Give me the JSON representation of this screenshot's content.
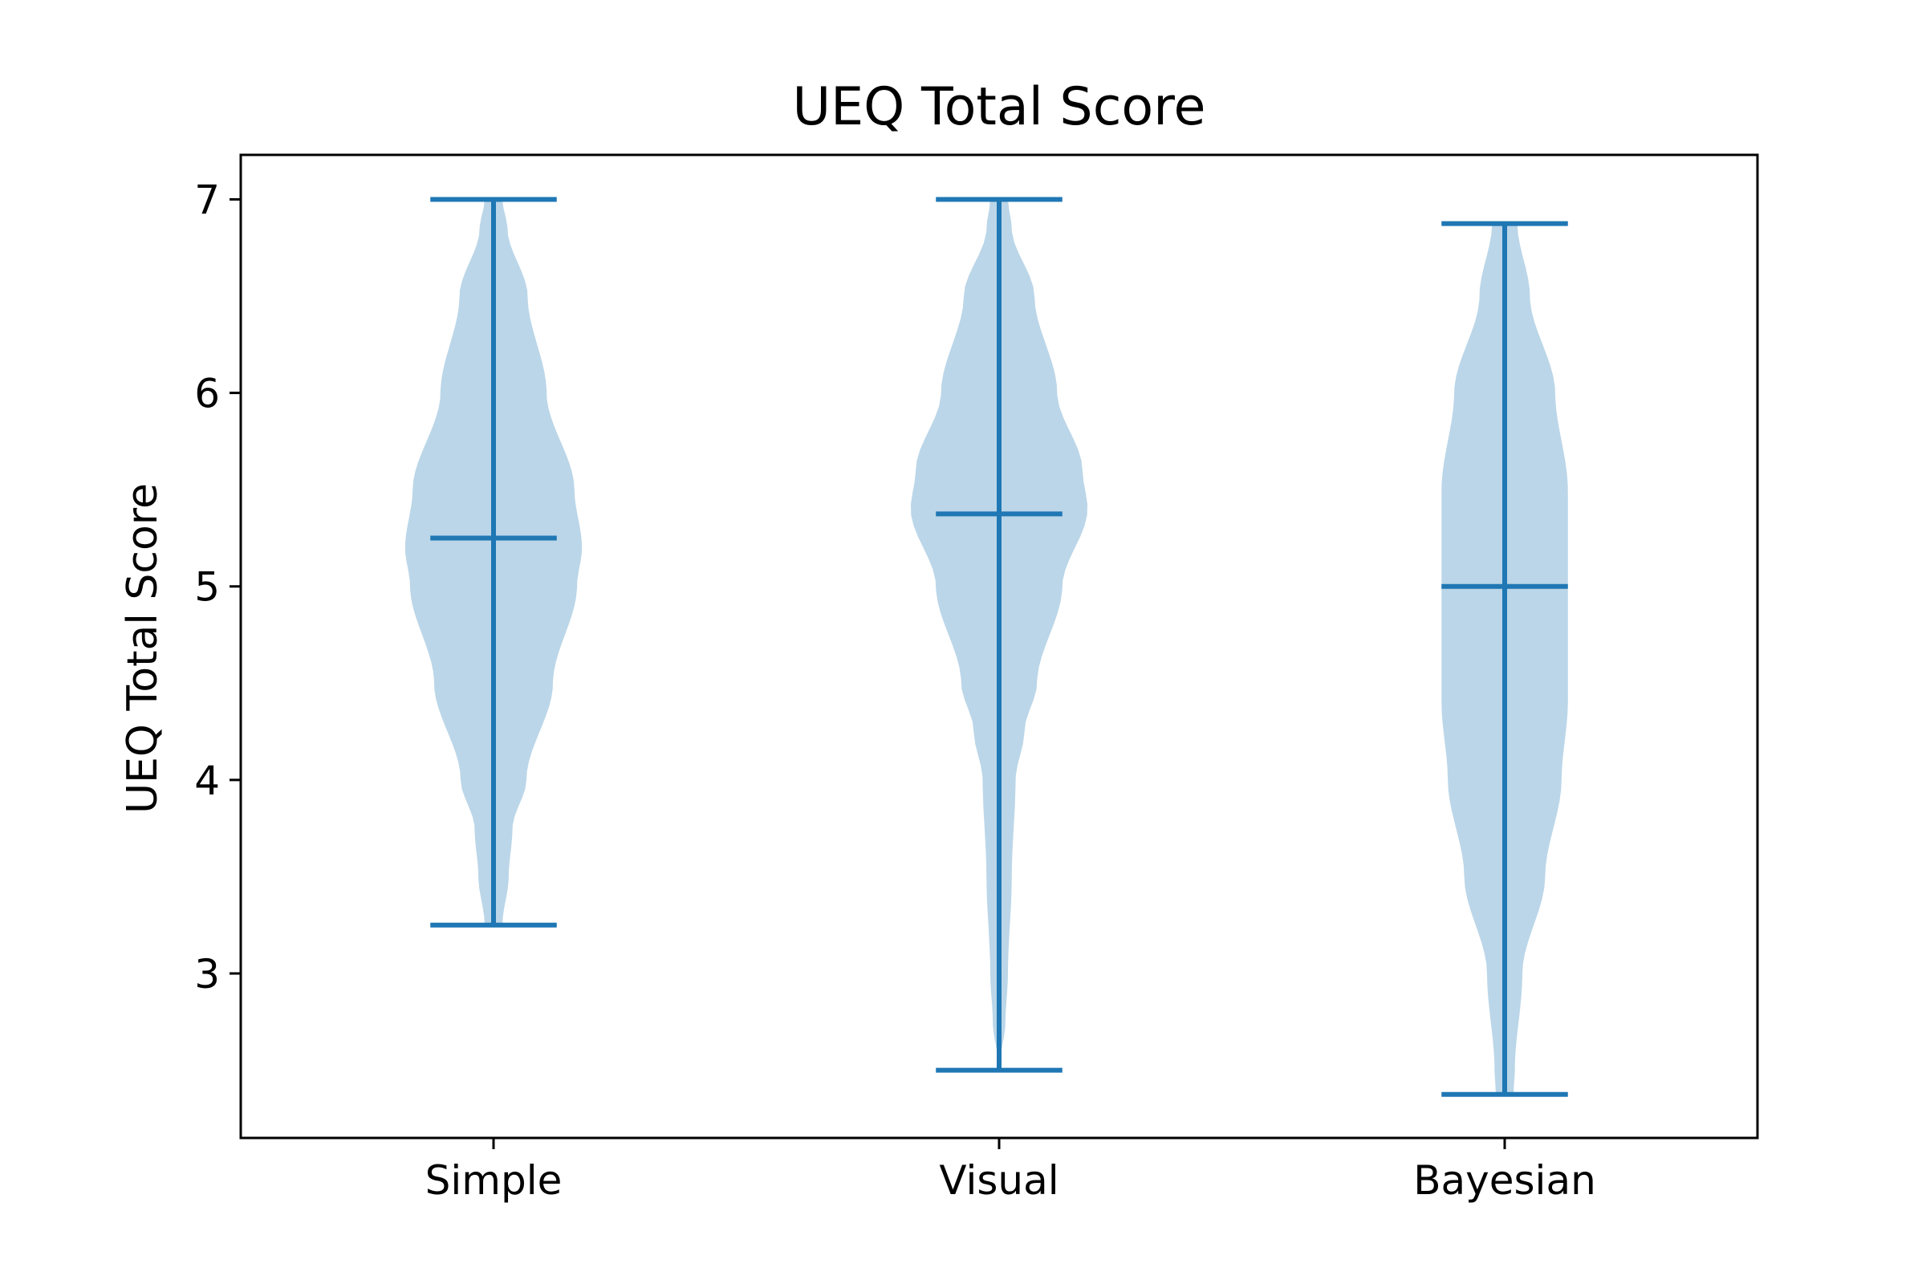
{
  "chart_data": {
    "type": "violin",
    "title": "UEQ Total Score",
    "xlabel": "",
    "ylabel": "UEQ Total Score",
    "ylim": [
      2.15,
      7.23
    ],
    "yticks": [
      3,
      4,
      5,
      6,
      7
    ],
    "grid": false,
    "categories": [
      "Simple",
      "Visual",
      "Bayesian"
    ],
    "violins": [
      {
        "name": "Simple",
        "min": 3.25,
        "max": 7.0,
        "median": 5.25,
        "density_profile": [
          [
            3.25,
            0.07
          ],
          [
            3.5,
            0.12
          ],
          [
            3.75,
            0.15
          ],
          [
            4.0,
            0.26
          ],
          [
            4.5,
            0.47
          ],
          [
            5.0,
            0.66
          ],
          [
            5.2,
            0.7
          ],
          [
            5.5,
            0.64
          ],
          [
            6.0,
            0.42
          ],
          [
            6.5,
            0.27
          ],
          [
            6.85,
            0.11
          ],
          [
            7.0,
            0.07
          ]
        ]
      },
      {
        "name": "Visual",
        "min": 2.5,
        "max": 7.0,
        "median": 5.375,
        "density_profile": [
          [
            2.5,
            0.0
          ],
          [
            2.75,
            0.05
          ],
          [
            3.0,
            0.07
          ],
          [
            3.5,
            0.1
          ],
          [
            4.0,
            0.13
          ],
          [
            4.25,
            0.2
          ],
          [
            4.5,
            0.3
          ],
          [
            5.0,
            0.5
          ],
          [
            5.4,
            0.7
          ],
          [
            5.6,
            0.66
          ],
          [
            6.0,
            0.46
          ],
          [
            6.5,
            0.28
          ],
          [
            6.85,
            0.1
          ],
          [
            7.0,
            0.07
          ]
        ]
      },
      {
        "name": "Bayesian",
        "min": 2.375,
        "max": 6.875,
        "median": 5.0,
        "density_profile": [
          [
            2.375,
            0.07
          ],
          [
            2.5,
            0.08
          ],
          [
            3.0,
            0.14
          ],
          [
            3.5,
            0.32
          ],
          [
            4.0,
            0.45
          ],
          [
            4.4,
            0.5
          ],
          [
            4.8,
            0.5
          ],
          [
            5.0,
            0.5
          ],
          [
            5.5,
            0.5
          ],
          [
            6.0,
            0.4
          ],
          [
            6.5,
            0.2
          ],
          [
            6.875,
            0.1
          ]
        ]
      }
    ],
    "colors": {
      "fill": "#1f77b4",
      "fill_opacity": 0.3,
      "line": "#1f77b4",
      "axis": "#000000"
    }
  }
}
